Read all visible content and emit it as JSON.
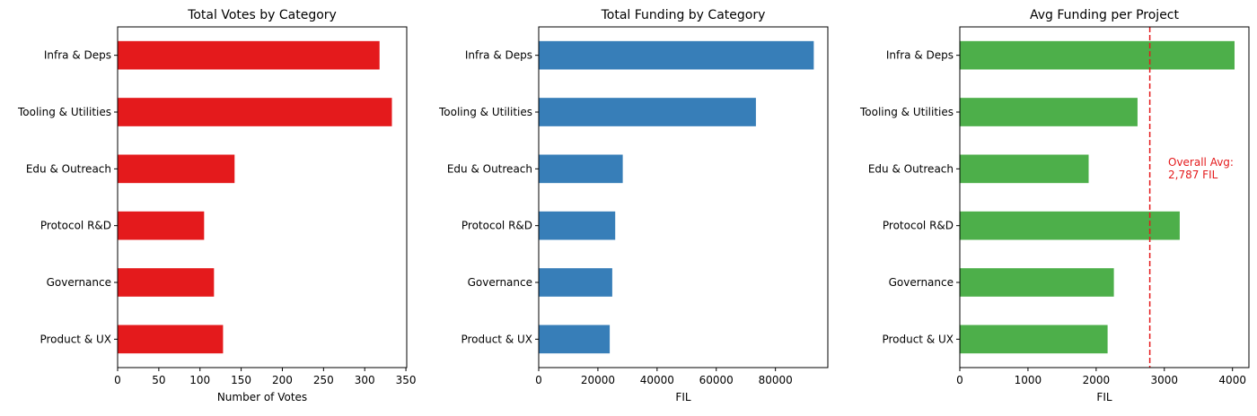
{
  "chart_data": [
    {
      "type": "bar",
      "orientation": "horizontal",
      "title": "Total Votes by Category",
      "xlabel": "Number of Votes",
      "ylabel": "",
      "categories": [
        "Infra & Deps",
        "Tooling & Utilities",
        "Edu & Outreach",
        "Protocol R&D",
        "Governance",
        "Product & UX"
      ],
      "values": [
        318,
        333,
        142,
        105,
        117,
        128
      ],
      "xlim": [
        0,
        351
      ],
      "xticks": [
        0,
        50,
        100,
        150,
        200,
        250,
        300,
        350
      ],
      "xtick_labels": [
        "0",
        "50",
        "100",
        "150",
        "200",
        "250",
        "300",
        "350"
      ],
      "color": "#e41a1c",
      "grid": false
    },
    {
      "type": "bar",
      "orientation": "horizontal",
      "title": "Total Funding by Category",
      "xlabel": "FIL",
      "ylabel": "",
      "categories": [
        "Infra & Deps",
        "Tooling & Utilities",
        "Edu & Outreach",
        "Protocol R&D",
        "Governance",
        "Product & UX"
      ],
      "values": [
        92950,
        73400,
        28400,
        25850,
        24850,
        24000
      ],
      "xlim": [
        0,
        97700
      ],
      "xticks": [
        0,
        20000,
        40000,
        60000,
        80000
      ],
      "xtick_labels": [
        "0",
        "20000",
        "40000",
        "60000",
        "80000"
      ],
      "color": "#377eb8",
      "grid": false
    },
    {
      "type": "bar",
      "orientation": "horizontal",
      "title": "Avg Funding per Project",
      "xlabel": "FIL",
      "ylabel": "",
      "categories": [
        "Infra & Deps",
        "Tooling & Utilities",
        "Edu & Outreach",
        "Protocol R&D",
        "Governance",
        "Product & UX"
      ],
      "values": [
        4030,
        2607,
        1890,
        3226,
        2260,
        2168
      ],
      "xlim": [
        0,
        4241
      ],
      "xticks": [
        0,
        1000,
        2000,
        3000,
        4000
      ],
      "xtick_labels": [
        "0",
        "1000",
        "2000",
        "3000",
        "4000"
      ],
      "color": "#4daf4a",
      "grid": false,
      "reference_line": {
        "value": 2787,
        "style": "dashed",
        "color": "#e41a1c"
      },
      "annotation": {
        "lines": [
          "Overall Avg:",
          "2,787 FIL"
        ],
        "color": "#e41a1c"
      }
    }
  ]
}
